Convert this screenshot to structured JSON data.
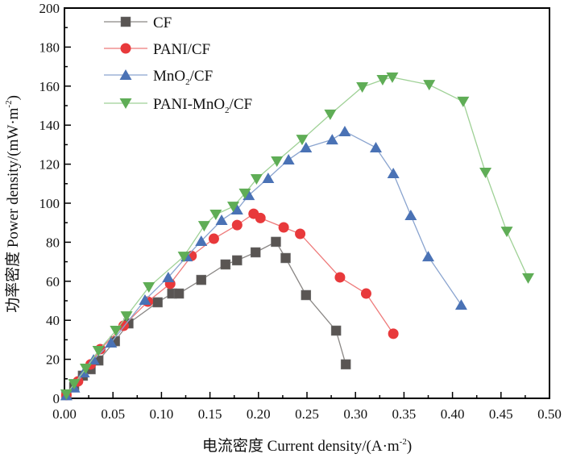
{
  "chart_data": {
    "type": "line",
    "title": "",
    "xlabel": "电流密度 Current density/(A·m",
    "xlabel_sup": "-2",
    "xlabel_end": ")",
    "ylabel": "功率密度 Power density/(mW·m",
    "ylabel_sup": "-2",
    "ylabel_end": ")",
    "xlim": [
      0,
      0.5
    ],
    "ylim": [
      0,
      200
    ],
    "xticks": [
      0.0,
      0.05,
      0.1,
      0.15,
      0.2,
      0.25,
      0.3,
      0.35,
      0.4,
      0.45,
      0.5
    ],
    "xtick_labels": [
      "0.00",
      "0.05",
      "0.10",
      "0.15",
      "0.20",
      "0.25",
      "0.30",
      "0.35",
      "0.40",
      "0.45",
      "0.50"
    ],
    "yticks": [
      0,
      20,
      40,
      60,
      80,
      100,
      120,
      140,
      160,
      180,
      200
    ],
    "ytick_labels": [
      "0",
      "20",
      "40",
      "60",
      "80",
      "100",
      "120",
      "140",
      "160",
      "180",
      "200"
    ],
    "grid": false,
    "legend_position": "top-left",
    "series": [
      {
        "name": "CF",
        "legend_main": "CF",
        "legend_sub": "",
        "legend_tail": "",
        "marker": "square",
        "color": "#595553",
        "line_color": "#8a8785",
        "x": [
          0.002,
          0.01,
          0.019,
          0.027,
          0.035,
          0.052,
          0.066,
          0.096,
          0.111,
          0.118,
          0.141,
          0.166,
          0.178,
          0.197,
          0.218,
          0.228,
          0.249,
          0.28,
          0.29
        ],
        "y": [
          1.7,
          5.8,
          11.6,
          14.9,
          19.4,
          29.3,
          38.4,
          49.2,
          53.7,
          53.7,
          60.7,
          68.6,
          70.7,
          74.8,
          80.2,
          71.9,
          52.9,
          34.7,
          17.4
        ]
      },
      {
        "name": "PANI/CF",
        "legend_main": "PANI/CF",
        "legend_sub": "",
        "legend_tail": "",
        "marker": "circle",
        "color": "#e8393b",
        "line_color": "#ee7a7a",
        "x": [
          0.002,
          0.014,
          0.027,
          0.037,
          0.061,
          0.086,
          0.109,
          0.131,
          0.154,
          0.178,
          0.195,
          0.202,
          0.226,
          0.243,
          0.284,
          0.311,
          0.339
        ],
        "y": [
          1.7,
          8.7,
          17.4,
          25.2,
          37.2,
          49.6,
          58.7,
          73.0,
          81.8,
          88.8,
          94.6,
          92.4,
          87.6,
          84.3,
          62.0,
          53.7,
          33.1
        ]
      },
      {
        "name": "MnO2/CF",
        "legend_main": "MnO",
        "legend_sub": "2",
        "legend_tail": "/CF",
        "marker": "triangle-up",
        "color": "#4a72b5",
        "line_color": "#8aa4cf",
        "x": [
          0.002,
          0.01,
          0.02,
          0.03,
          0.048,
          0.083,
          0.107,
          0.126,
          0.141,
          0.162,
          0.178,
          0.19,
          0.21,
          0.231,
          0.249,
          0.276,
          0.289,
          0.321,
          0.339,
          0.357,
          0.375,
          0.409
        ],
        "y": [
          1.5,
          5.5,
          13.2,
          19.8,
          28.5,
          50.4,
          62.0,
          72.7,
          80.6,
          91.3,
          96.7,
          104.1,
          112.8,
          122.3,
          128.5,
          132.6,
          136.8,
          128.5,
          115.3,
          93.8,
          72.7,
          47.9
        ]
      },
      {
        "name": "PANI-MnO2/CF",
        "legend_main": "PANI-MnO",
        "legend_sub": "2",
        "legend_tail": "/CF",
        "marker": "triangle-down",
        "color": "#5fad56",
        "line_color": "#9fd196",
        "x": [
          0.002,
          0.01,
          0.022,
          0.035,
          0.053,
          0.064,
          0.087,
          0.123,
          0.144,
          0.156,
          0.174,
          0.186,
          0.198,
          0.219,
          0.245,
          0.274,
          0.307,
          0.328,
          0.338,
          0.376,
          0.411,
          0.434,
          0.456,
          0.478
        ],
        "y": [
          2.1,
          7.4,
          15.3,
          24.4,
          34.7,
          42.1,
          57.0,
          72.7,
          88.4,
          94.2,
          98.3,
          105.0,
          112.4,
          121.5,
          132.6,
          145.5,
          159.5,
          163.2,
          164.5,
          160.7,
          152.1,
          115.7,
          85.5,
          61.6
        ]
      }
    ]
  }
}
